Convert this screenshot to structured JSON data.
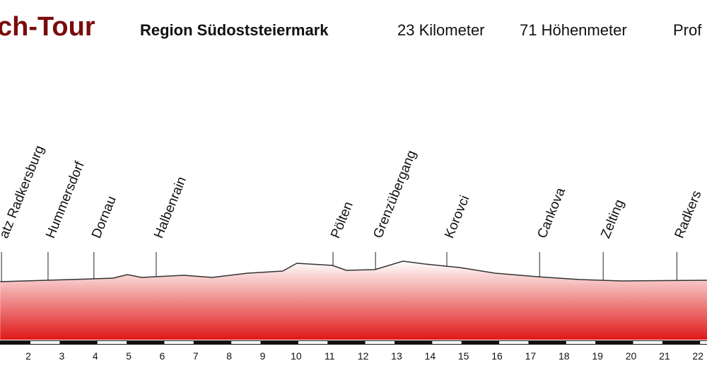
{
  "chart_data": {
    "type": "area",
    "title": "ch-Tour",
    "header": [
      "Region Südoststeiermark",
      "23 Kilometer",
      "71 Höhenmeter",
      "Prof"
    ],
    "x": [
      1.16,
      3.27,
      4.53,
      4.96,
      5.38,
      6.65,
      7.49,
      8.55,
      9.6,
      10.02,
      11.08,
      11.5,
      12.35,
      13.19,
      13.83,
      14.88,
      15.94,
      17.21,
      18.47,
      19.74,
      22.27
    ],
    "values": [
      82,
      85,
      87,
      92,
      88,
      91,
      88,
      94,
      97,
      108,
      105,
      98,
      99,
      111,
      107,
      102,
      94,
      89,
      85,
      83,
      84
    ],
    "color": "#e01818",
    "places": [
      {
        "name": "atz Radkersburg",
        "km": 1.2
      },
      {
        "name": "Hummersdorf",
        "km": 2.59
      },
      {
        "name": "Dornau",
        "km": 3.96
      },
      {
        "name": "Halbenrain",
        "km": 5.82
      },
      {
        "name": "Pölten",
        "km": 11.1
      },
      {
        "name": "Grenzübergang",
        "km": 12.37
      },
      {
        "name": "Korovci",
        "km": 14.5
      },
      {
        "name": "Cankova",
        "km": 17.27
      },
      {
        "name": "Zelting",
        "km": 19.17
      },
      {
        "name": "Radkers",
        "km": 21.37
      }
    ],
    "xlim": [
      1.155,
      22.27
    ],
    "xticks": [
      2,
      3,
      4,
      5,
      6,
      7,
      8,
      9,
      10,
      11,
      12,
      13,
      14,
      15,
      16,
      17,
      18,
      19,
      20,
      21,
      22
    ],
    "ylim": [
      0,
      120
    ]
  }
}
